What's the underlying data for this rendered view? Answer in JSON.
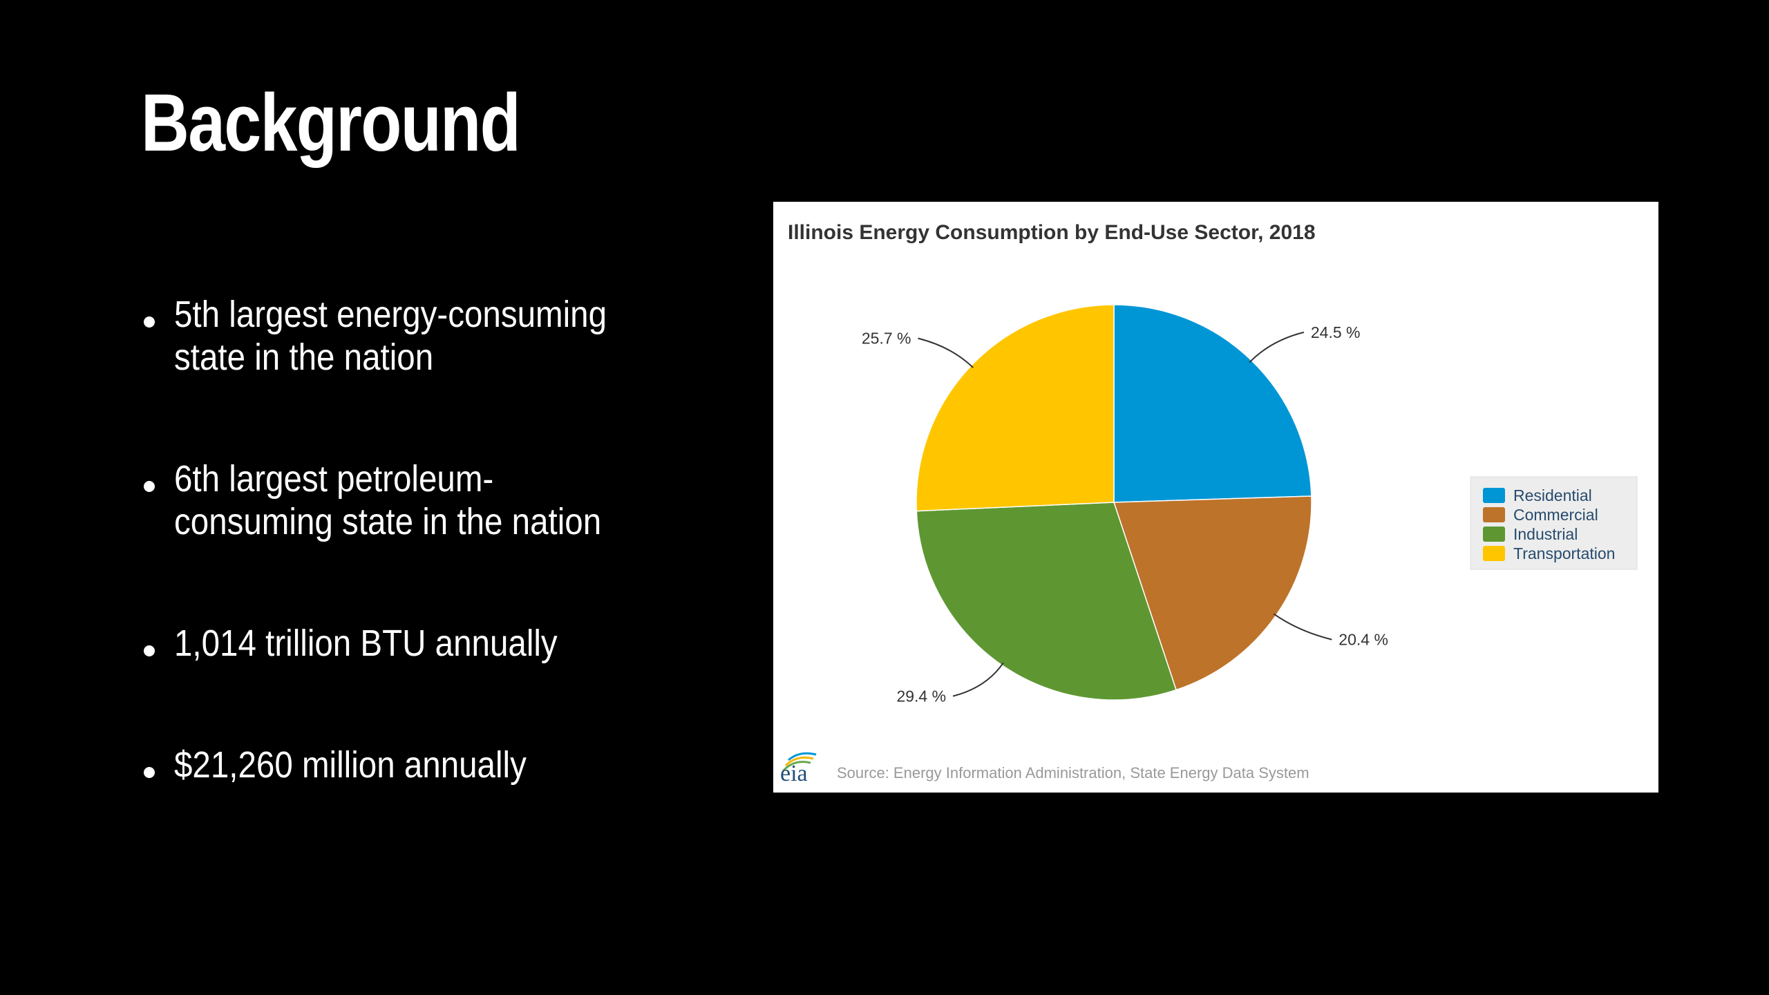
{
  "slide": {
    "title": "Background",
    "bullets": [
      "5th largest energy-consuming\nstate in the nation",
      "6th largest petroleum-\nconsuming state in the nation",
      "1,014 trillion BTU annually",
      "$21,260 million annually"
    ]
  },
  "chart_data": {
    "type": "pie",
    "title": "Illinois Energy Consumption by End-Use Sector, 2018",
    "categories": [
      "Residential",
      "Commercial",
      "Industrial",
      "Transportation"
    ],
    "values": [
      24.5,
      20.4,
      29.4,
      25.7
    ],
    "data_labels": [
      "24.5 %",
      "20.4 %",
      "29.4 %",
      "25.7 %"
    ],
    "colors": [
      "#0096D6",
      "#BD732A",
      "#5E9732",
      "#FFC600"
    ],
    "legend_position": "right",
    "source": "Source: Energy Information Administration, State Energy Data System",
    "logo_text": "eia"
  }
}
